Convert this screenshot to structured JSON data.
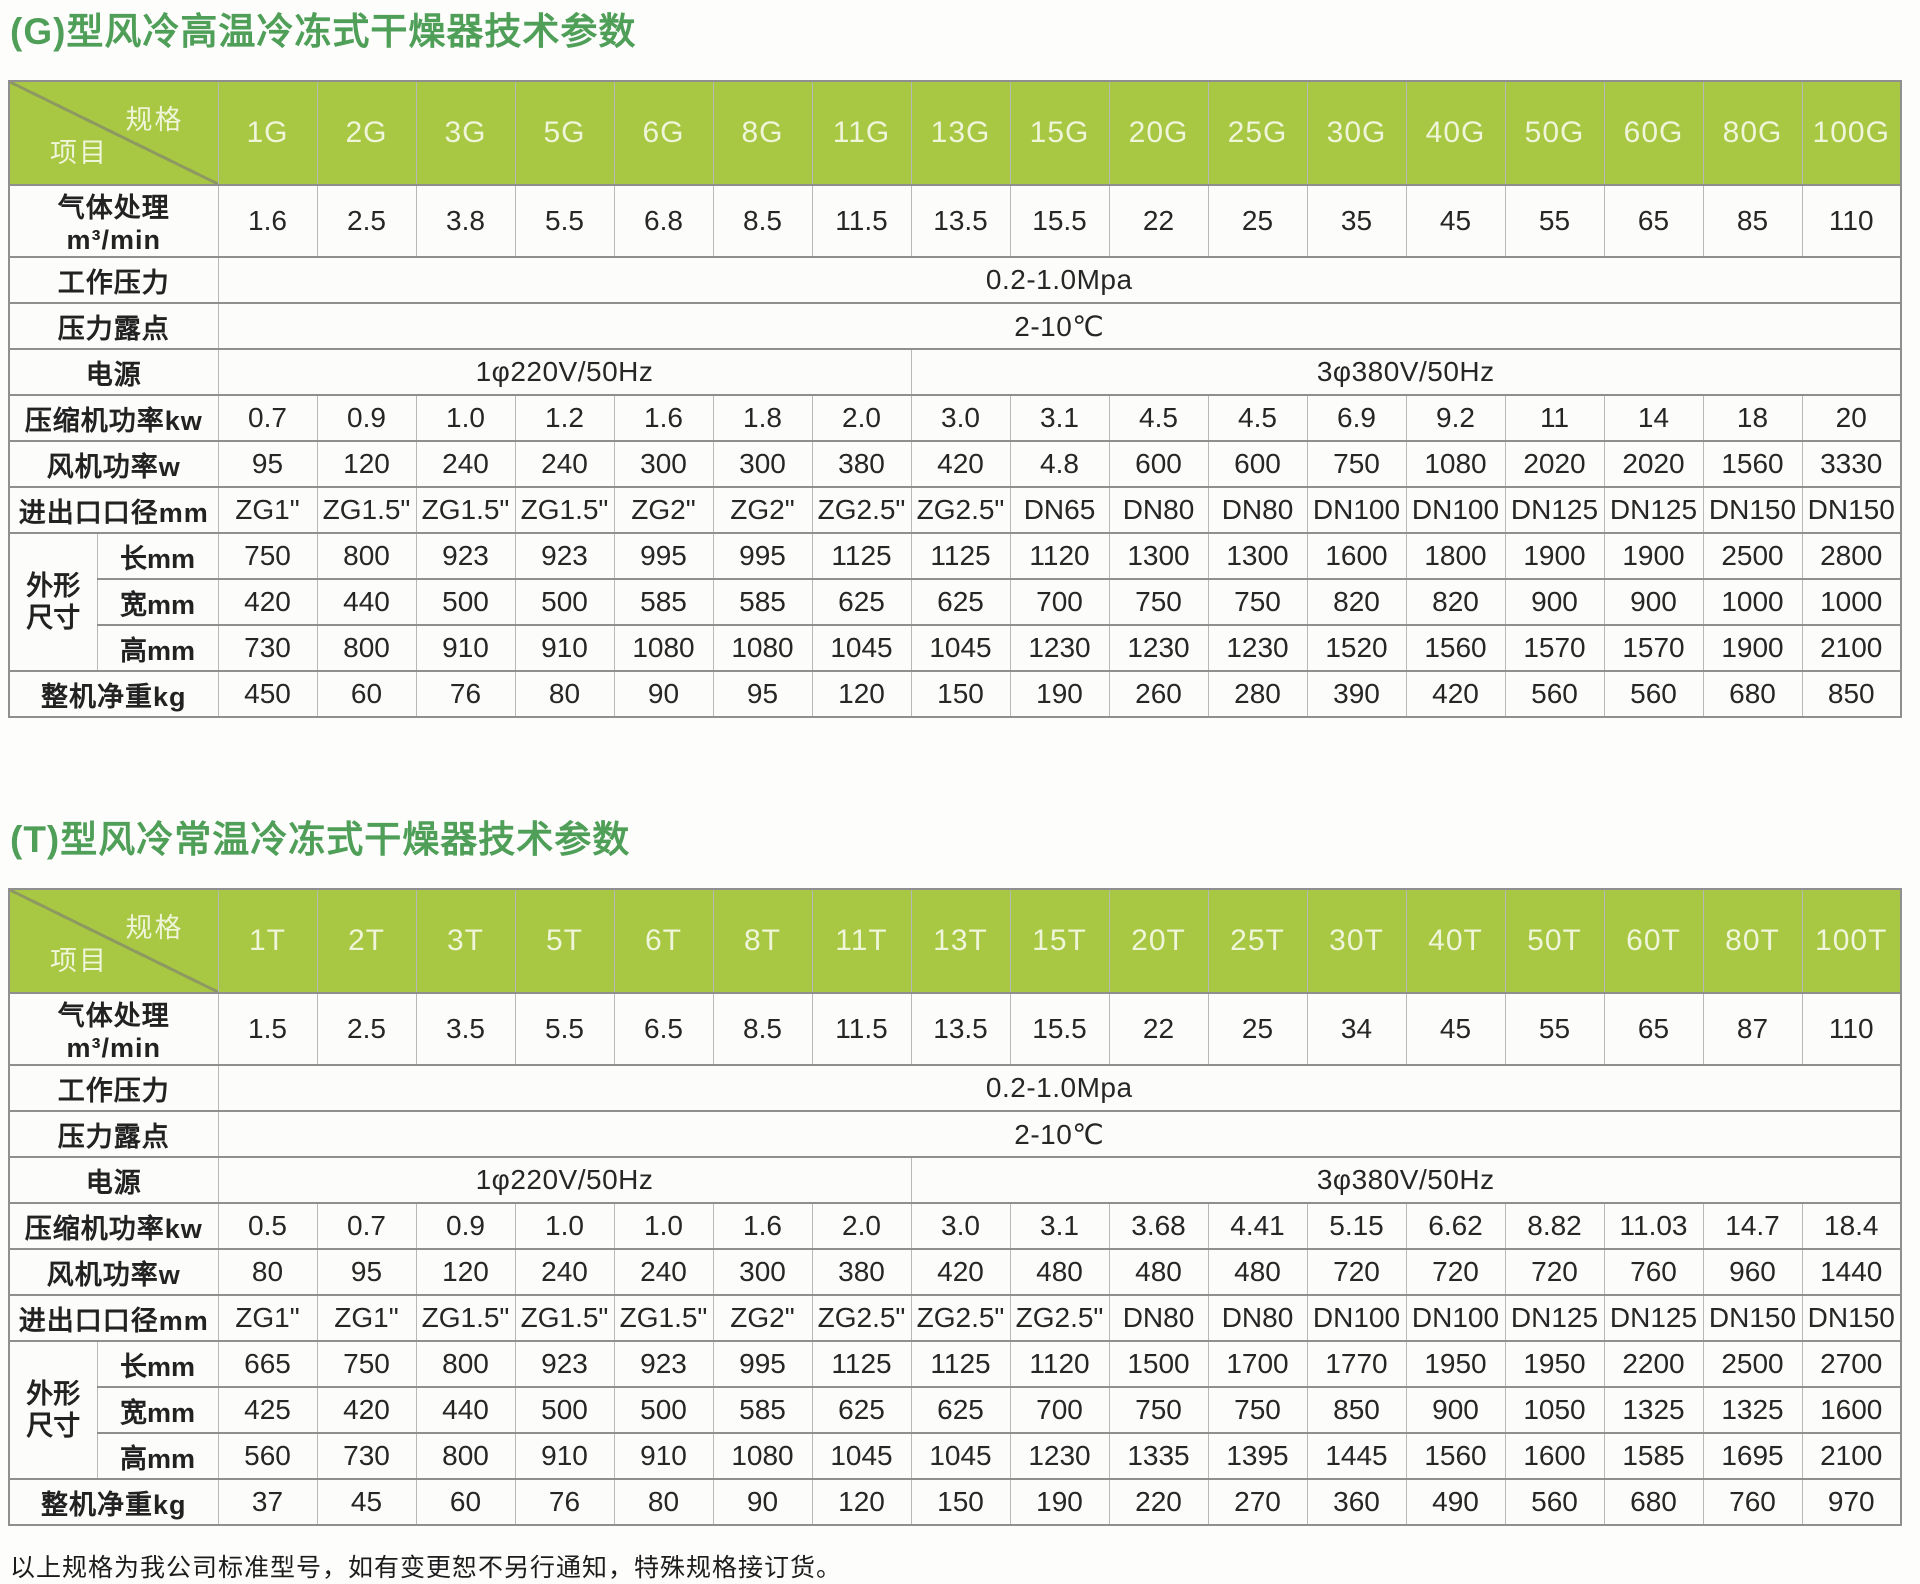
{
  "colors": {
    "header_green": "#a8c742",
    "header_text": "#eff5d8",
    "title_green": "#4f9f58",
    "h_border": "#8f8f8f",
    "v_border": "#b8b8b8"
  },
  "corner": {
    "spec_label": "规格",
    "item_label": "项目"
  },
  "footer_note": "以上规格为我公司标准型号，如有变更恕不另行通知，特殊规格接订货。",
  "tables": [
    {
      "title": "(G)型风冷高温冷冻式干燥器技术参数",
      "models": [
        "1G",
        "2G",
        "3G",
        "5G",
        "6G",
        "8G",
        "11G",
        "13G",
        "15G",
        "20G",
        "25G",
        "30G",
        "40G",
        "50G",
        "60G",
        "80G",
        "100G"
      ],
      "dims_label_lines": [
        "外形",
        "尺寸"
      ],
      "rows": {
        "air_flow": {
          "label": "气体处理m³/min",
          "values": [
            "1.6",
            "2.5",
            "3.8",
            "5.5",
            "6.8",
            "8.5",
            "11.5",
            "13.5",
            "15.5",
            "22",
            "25",
            "35",
            "45",
            "55",
            "65",
            "85",
            "110"
          ]
        },
        "working_pressure": {
          "label": "工作压力",
          "value": "0.2-1.0Mpa"
        },
        "dew_point": {
          "label": "压力露点",
          "value": "2-10℃"
        },
        "power_supply": {
          "label": "电源",
          "left": "1φ220V/50Hz",
          "left_span": 7,
          "right": "3φ380V/50Hz",
          "right_span": 10
        },
        "compressor_power": {
          "label": "压缩机功率kw",
          "values": [
            "0.7",
            "0.9",
            "1.0",
            "1.2",
            "1.6",
            "1.8",
            "2.0",
            "3.0",
            "3.1",
            "4.5",
            "4.5",
            "6.9",
            "9.2",
            "11",
            "14",
            "18",
            "20"
          ]
        },
        "fan_power": {
          "label": "风机功率w",
          "values": [
            "95",
            "120",
            "240",
            "240",
            "300",
            "300",
            "380",
            "420",
            "4.8",
            "600",
            "600",
            "750",
            "1080",
            "2020",
            "2020",
            "1560",
            "3330"
          ]
        },
        "port_size": {
          "label": "进出口口径mm",
          "values": [
            "ZG1\"",
            "ZG1.5\"",
            "ZG1.5\"",
            "ZG1.5\"",
            "ZG2\"",
            "ZG2\"",
            "ZG2.5\"",
            "ZG2.5\"",
            "DN65",
            "DN80",
            "DN80",
            "DN100",
            "DN100",
            "DN125",
            "DN125",
            "DN150",
            "DN150"
          ]
        },
        "length": {
          "label": "长mm",
          "values": [
            "750",
            "800",
            "923",
            "923",
            "995",
            "995",
            "1125",
            "1125",
            "1120",
            "1300",
            "1300",
            "1600",
            "1800",
            "1900",
            "1900",
            "2500",
            "2800"
          ]
        },
        "width": {
          "label": "宽mm",
          "values": [
            "420",
            "440",
            "500",
            "500",
            "585",
            "585",
            "625",
            "625",
            "700",
            "750",
            "750",
            "820",
            "820",
            "900",
            "900",
            "1000",
            "1000"
          ]
        },
        "height": {
          "label": "高mm",
          "values": [
            "730",
            "800",
            "910",
            "910",
            "1080",
            "1080",
            "1045",
            "1045",
            "1230",
            "1230",
            "1230",
            "1520",
            "1560",
            "1570",
            "1570",
            "1900",
            "2100"
          ]
        },
        "net_weight": {
          "label": "整机净重kg",
          "values": [
            "450",
            "60",
            "76",
            "80",
            "90",
            "95",
            "120",
            "150",
            "190",
            "260",
            "280",
            "390",
            "420",
            "560",
            "560",
            "680",
            "850"
          ]
        }
      }
    },
    {
      "title": "(T)型风冷常温冷冻式干燥器技术参数",
      "models": [
        "1T",
        "2T",
        "3T",
        "5T",
        "6T",
        "8T",
        "11T",
        "13T",
        "15T",
        "20T",
        "25T",
        "30T",
        "40T",
        "50T",
        "60T",
        "80T",
        "100T"
      ],
      "dims_label_lines": [
        "外形",
        "尺寸"
      ],
      "rows": {
        "air_flow": {
          "label": "气体处理m³/min",
          "values": [
            "1.5",
            "2.5",
            "3.5",
            "5.5",
            "6.5",
            "8.5",
            "11.5",
            "13.5",
            "15.5",
            "22",
            "25",
            "34",
            "45",
            "55",
            "65",
            "87",
            "110"
          ]
        },
        "working_pressure": {
          "label": "工作压力",
          "value": "0.2-1.0Mpa"
        },
        "dew_point": {
          "label": "压力露点",
          "value": "2-10℃"
        },
        "power_supply": {
          "label": "电源",
          "left": "1φ220V/50Hz",
          "left_span": 7,
          "right": "3φ380V/50Hz",
          "right_span": 10
        },
        "compressor_power": {
          "label": "压缩机功率kw",
          "values": [
            "0.5",
            "0.7",
            "0.9",
            "1.0",
            "1.0",
            "1.6",
            "2.0",
            "3.0",
            "3.1",
            "3.68",
            "4.41",
            "5.15",
            "6.62",
            "8.82",
            "11.03",
            "14.7",
            "18.4"
          ]
        },
        "fan_power": {
          "label": "风机功率w",
          "values": [
            "80",
            "95",
            "120",
            "240",
            "240",
            "300",
            "380",
            "420",
            "480",
            "480",
            "480",
            "720",
            "720",
            "720",
            "760",
            "960",
            "1440"
          ]
        },
        "port_size": {
          "label": "进出口口径mm",
          "values": [
            "ZG1\"",
            "ZG1\"",
            "ZG1.5\"",
            "ZG1.5\"",
            "ZG1.5\"",
            "ZG2\"",
            "ZG2.5\"",
            "ZG2.5\"",
            "ZG2.5\"",
            "DN80",
            "DN80",
            "DN100",
            "DN100",
            "DN125",
            "DN125",
            "DN150",
            "DN150"
          ]
        },
        "length": {
          "label": "长mm",
          "values": [
            "665",
            "750",
            "800",
            "923",
            "923",
            "995",
            "1125",
            "1125",
            "1120",
            "1500",
            "1700",
            "1770",
            "1950",
            "1950",
            "2200",
            "2500",
            "2700"
          ]
        },
        "width": {
          "label": "宽mm",
          "values": [
            "425",
            "420",
            "440",
            "500",
            "500",
            "585",
            "625",
            "625",
            "700",
            "750",
            "750",
            "850",
            "900",
            "1050",
            "1325",
            "1325",
            "1600"
          ]
        },
        "height": {
          "label": "高mm",
          "values": [
            "560",
            "730",
            "800",
            "910",
            "910",
            "1080",
            "1045",
            "1045",
            "1230",
            "1335",
            "1395",
            "1445",
            "1560",
            "1600",
            "1585",
            "1695",
            "2100"
          ]
        },
        "net_weight": {
          "label": "整机净重kg",
          "values": [
            "37",
            "45",
            "60",
            "76",
            "80",
            "90",
            "120",
            "150",
            "190",
            "220",
            "270",
            "360",
            "490",
            "560",
            "680",
            "760",
            "970"
          ]
        }
      }
    }
  ]
}
